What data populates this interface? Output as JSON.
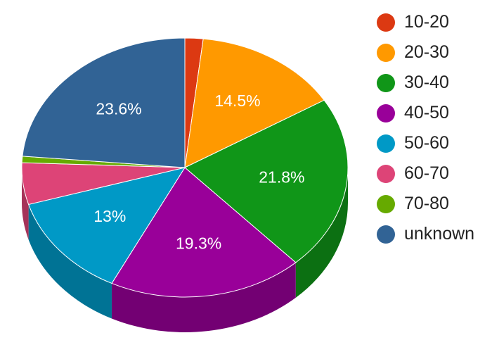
{
  "chart_data": {
    "type": "pie",
    "three_d": true,
    "legend_position": "right",
    "slices": [
      {
        "label": "10-20",
        "value": 1.8,
        "data_label": "",
        "color": "#dc3912",
        "side_color": "#a52a0d"
      },
      {
        "label": "20-30",
        "value": 14.5,
        "data_label": "14.5%",
        "color": "#ff9900",
        "side_color": "#c07300"
      },
      {
        "label": "30-40",
        "value": 21.8,
        "data_label": "21.8%",
        "color": "#109618",
        "side_color": "#0c7012"
      },
      {
        "label": "40-50",
        "value": 19.3,
        "data_label": "19.3%",
        "color": "#990099",
        "side_color": "#730073"
      },
      {
        "label": "50-60",
        "value": 13.0,
        "data_label": "13%",
        "color": "#0099c6",
        "side_color": "#007395"
      },
      {
        "label": "60-70",
        "value": 5.2,
        "data_label": "",
        "color": "#dd4477",
        "side_color": "#a63359"
      },
      {
        "label": "70-80",
        "value": 0.8,
        "data_label": "",
        "color": "#66aa00",
        "side_color": "#4d8000"
      },
      {
        "label": "unknown",
        "value": 23.6,
        "data_label": "23.6%",
        "color": "#316395",
        "side_color": "#254a70"
      }
    ]
  }
}
